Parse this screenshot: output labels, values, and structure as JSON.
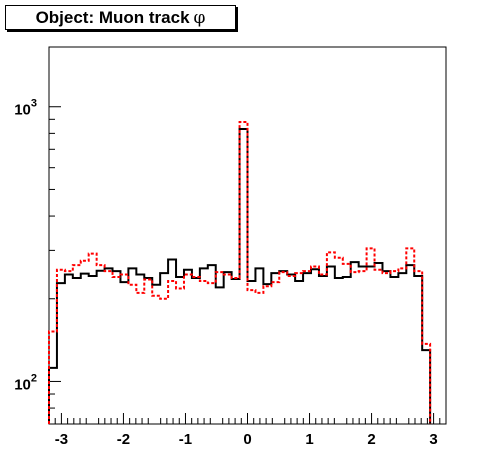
{
  "chart_data": {
    "type": "histogram",
    "title": "Object: Muon track",
    "title_symbol": "φ",
    "xlim": [
      -3.2,
      3.2
    ],
    "ylim": [
      70,
      1650
    ],
    "yscale": "log",
    "xticks": [
      -3,
      -2,
      -1,
      0,
      1,
      2,
      3
    ],
    "xtick_labels": [
      "-3",
      "-2",
      "-1",
      "0",
      "1",
      "2",
      "3"
    ],
    "yticks_major": [
      {
        "value": 100,
        "base": "10",
        "exp": "2"
      },
      {
        "value": 1000,
        "base": "10",
        "exp": "3"
      }
    ],
    "bin_edges_start": -3.2,
    "bin_width": 0.128,
    "series": [
      {
        "style": "solid",
        "color": "#000000",
        "values": [
          112,
          228,
          245,
          238,
          247,
          242,
          253,
          258,
          252,
          230,
          258,
          245,
          238,
          225,
          248,
          278,
          240,
          255,
          238,
          258,
          265,
          220,
          250,
          236,
          830,
          232,
          258,
          226,
          248,
          252,
          245,
          232,
          248,
          256,
          242,
          262,
          238,
          240,
          272,
          262,
          262,
          270,
          252,
          240,
          248,
          265,
          242,
          130
        ]
      },
      {
        "style": "dashed",
        "color": "#ff0000",
        "values": [
          152,
          255,
          252,
          265,
          275,
          292,
          265,
          252,
          240,
          245,
          225,
          210,
          235,
          205,
          200,
          232,
          218,
          245,
          240,
          232,
          228,
          250,
          245,
          238,
          880,
          215,
          210,
          222,
          230,
          250,
          242,
          248,
          252,
          262,
          245,
          295,
          282,
          268,
          250,
          252,
          305,
          255,
          248,
          252,
          258,
          305,
          252,
          137
        ]
      }
    ]
  }
}
